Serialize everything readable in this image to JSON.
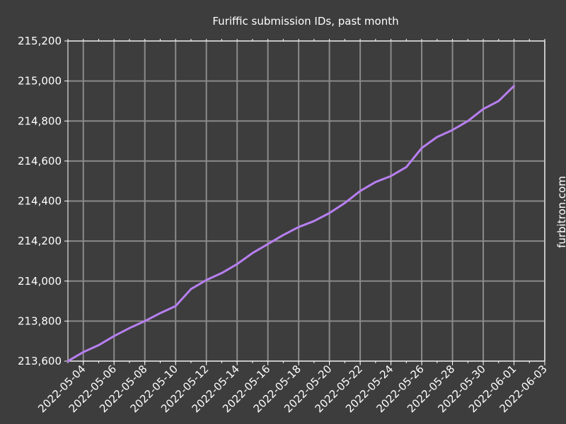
{
  "side_label": "furbitron.com",
  "colors": {
    "background": "#3d3d3d",
    "grid": "#8a8a8a",
    "text": "#ffffff",
    "line": "#b77ff0"
  },
  "chart_data": {
    "type": "line",
    "title": "Furiffic submission IDs, past month",
    "xlabel": "",
    "ylabel": "",
    "grid": true,
    "x_range": [
      "2022-05-03",
      "2022-06-03"
    ],
    "ylim": [
      213600,
      215200
    ],
    "y_ticks": [
      213600,
      213800,
      214000,
      214200,
      214400,
      214600,
      214800,
      215000,
      215200
    ],
    "y_tick_labels": [
      "213,600",
      "213,800",
      "214,000",
      "214,200",
      "214,400",
      "214,600",
      "214,800",
      "215,000",
      "215,200"
    ],
    "x_ticks": [
      "2022-05-04",
      "2022-05-06",
      "2022-05-08",
      "2022-05-10",
      "2022-05-12",
      "2022-05-14",
      "2022-05-16",
      "2022-05-18",
      "2022-05-20",
      "2022-05-22",
      "2022-05-24",
      "2022-05-26",
      "2022-05-28",
      "2022-05-30",
      "2022-06-01",
      "2022-06-03"
    ],
    "series": [
      {
        "x": [
          "2022-05-03",
          "2022-05-04",
          "2022-05-05",
          "2022-05-06",
          "2022-05-07",
          "2022-05-08",
          "2022-05-09",
          "2022-05-10",
          "2022-05-11",
          "2022-05-12",
          "2022-05-13",
          "2022-05-14",
          "2022-05-15",
          "2022-05-16",
          "2022-05-17",
          "2022-05-18",
          "2022-05-19",
          "2022-05-20",
          "2022-05-21",
          "2022-05-22",
          "2022-05-23",
          "2022-05-24",
          "2022-05-25",
          "2022-05-26",
          "2022-05-27",
          "2022-05-28",
          "2022-05-29",
          "2022-05-30",
          "2022-05-31",
          "2022-06-01"
        ],
        "y": [
          213600,
          213645,
          213680,
          213725,
          213765,
          213800,
          213840,
          213875,
          213960,
          214005,
          214040,
          214085,
          214140,
          214185,
          214230,
          214270,
          214300,
          214340,
          214390,
          214450,
          214495,
          214525,
          214570,
          214665,
          214720,
          214755,
          214800,
          214860,
          214900,
          214975
        ]
      }
    ]
  }
}
